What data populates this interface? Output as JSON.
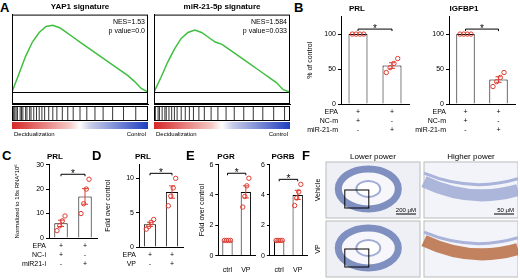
{
  "chart_data": [
    {
      "type": "line",
      "panel": "A",
      "title": "YAP1 signature",
      "color": "#3fbf3f",
      "annotations": [
        "NES=1.53",
        "p value=0.0"
      ],
      "x": [
        0,
        5,
        10,
        15,
        20,
        25,
        30,
        35,
        40,
        45,
        50,
        55,
        60,
        65,
        70,
        75,
        80,
        85,
        90,
        95,
        100
      ],
      "values": [
        0,
        0.15,
        0.3,
        0.42,
        0.5,
        0.55,
        0.56,
        0.54,
        0.5,
        0.46,
        0.42,
        0.38,
        0.34,
        0.3,
        0.26,
        0.22,
        0.18,
        0.14,
        0.09,
        0.03,
        0
      ],
      "hits": [
        1,
        2,
        3,
        4,
        6,
        7,
        8,
        10,
        11,
        13,
        14,
        16,
        18,
        20,
        22,
        24,
        27,
        30,
        33,
        37,
        41,
        45,
        50,
        55,
        61,
        67,
        74,
        82,
        91
      ],
      "gradient_labels": [
        "Decidualization",
        "Control"
      ],
      "xlim": [
        0,
        100
      ],
      "ylim": [
        -0.1,
        0.65
      ],
      "yticks": [
        0
      ],
      "grid": true,
      "tick_labels": false
    },
    {
      "type": "line",
      "title": "miR-21-5p signature",
      "color": "#3fbf3f",
      "annotations": [
        "NES=1.584",
        "p value=0.033"
      ],
      "x": [
        0,
        5,
        10,
        15,
        20,
        25,
        30,
        35,
        40,
        45,
        50,
        55,
        60,
        65,
        70,
        75,
        80,
        85,
        90,
        95,
        100
      ],
      "values": [
        0,
        0.12,
        0.25,
        0.36,
        0.45,
        0.5,
        0.52,
        0.5,
        0.46,
        0.42,
        0.4,
        0.36,
        0.32,
        0.28,
        0.24,
        0.2,
        0.16,
        0.12,
        0.08,
        0.02,
        0
      ],
      "hits": [
        1,
        3,
        4,
        6,
        8,
        9,
        11,
        13,
        15,
        17,
        20,
        23,
        26,
        29,
        33,
        37,
        42,
        47,
        53,
        59,
        66,
        73,
        80,
        88,
        96
      ],
      "gradient_labels": [
        "Decidualization",
        "Control"
      ],
      "xlim": [
        0,
        100
      ],
      "ylim": [
        -0.1,
        0.65
      ],
      "yticks": [
        0
      ],
      "grid": true,
      "tick_labels": false
    },
    {
      "type": "bar",
      "panel": "B",
      "title": "PRL",
      "y_label": "% of control",
      "color": "#e03c31",
      "conditions": [
        {
          "name": "EPA",
          "signs": [
            "+",
            "+"
          ]
        },
        {
          "name": "NC-m",
          "signs": [
            "+",
            "-"
          ]
        },
        {
          "name": "miR-21-m",
          "signs": [
            "-",
            "+"
          ]
        }
      ],
      "values": [
        100,
        55
      ],
      "errors": [
        0,
        4
      ],
      "points": [
        [
          100,
          100,
          100,
          100
        ],
        [
          45,
          52,
          58,
          65
        ]
      ],
      "significance": {
        "pair": [
          0,
          1
        ],
        "label": "*"
      },
      "ylim": [
        0,
        125
      ],
      "yticks": [
        0,
        50,
        100
      ],
      "grid": false
    },
    {
      "type": "bar",
      "title": "IGFBP1",
      "color": "#e03c31",
      "conditions": [
        {
          "name": "EPA",
          "signs": [
            "+",
            "+"
          ]
        },
        {
          "name": "NC-m",
          "signs": [
            "+",
            "-"
          ]
        },
        {
          "name": "miR-21-m",
          "signs": [
            "-",
            "+"
          ]
        }
      ],
      "values": [
        100,
        35
      ],
      "errors": [
        0,
        4
      ],
      "points": [
        [
          100,
          100,
          100,
          100
        ],
        [
          25,
          32,
          38,
          45
        ]
      ],
      "significance": {
        "pair": [
          0,
          1
        ],
        "label": "*"
      },
      "ylim": [
        0,
        125
      ],
      "yticks": [
        0,
        50,
        100
      ],
      "grid": false
    },
    {
      "type": "bar",
      "panel": "C",
      "title": "PRL",
      "y_label": "Normalized to 18s RNA*10⁶",
      "color": "#e03c31",
      "conditions": [
        {
          "name": "EPA",
          "signs": [
            "+",
            "+"
          ]
        },
        {
          "name": "NC-i",
          "signs": [
            "+",
            "-"
          ]
        },
        {
          "name": "miR21-i",
          "signs": [
            "-",
            "+"
          ]
        }
      ],
      "values": [
        6,
        17
      ],
      "errors": [
        1.3,
        3.2
      ],
      "points": [
        [
          3,
          5,
          7,
          9
        ],
        [
          10,
          14,
          20,
          24
        ]
      ],
      "significance": {
        "pair": [
          0,
          1
        ],
        "label": "*"
      },
      "ylim": [
        0,
        30
      ],
      "yticks": [
        0,
        10,
        20,
        30
      ],
      "grid": false
    },
    {
      "type": "bar",
      "panel": "D",
      "title": "PRL",
      "y_label": "Fold over control",
      "color": "#e03c31",
      "conditions": [
        {
          "name": "EPA",
          "signs": [
            "+",
            "+"
          ]
        },
        {
          "name": "VP",
          "signs": [
            "-",
            "+"
          ]
        }
      ],
      "values": [
        3.3,
        8
      ],
      "errors": [
        0.3,
        0.9
      ],
      "points": [
        [
          2.6,
          3,
          3.6,
          4
        ],
        [
          6,
          7.4,
          8.6,
          10
        ]
      ],
      "significance": {
        "pair": [
          0,
          1
        ],
        "label": "*"
      },
      "ylim": [
        0,
        12
      ],
      "yticks": [
        0,
        5,
        10
      ],
      "grid": false
    },
    {
      "type": "bar",
      "panel": "E",
      "title": "PGR",
      "y_label": "Fold over control",
      "color": "#e03c31",
      "categories": [
        "ctrl",
        "VP"
      ],
      "values": [
        1,
        4.2
      ],
      "errors": [
        0,
        0.4
      ],
      "points": [
        [
          1,
          1,
          1,
          1
        ],
        [
          3.2,
          3.9,
          4.6,
          5.1
        ]
      ],
      "significance": {
        "pair": [
          0,
          1
        ],
        "label": "*"
      },
      "ylim": [
        0,
        6
      ],
      "yticks": [
        0,
        2,
        4,
        6
      ],
      "grid": false
    },
    {
      "type": "bar",
      "title": "PGRB",
      "color": "#e03c31",
      "categories": [
        "ctrl",
        "VP"
      ],
      "values": [
        1,
        4.0
      ],
      "errors": [
        0,
        0.3
      ],
      "points": [
        [
          1,
          1,
          1,
          1
        ],
        [
          3.3,
          3.8,
          4.2,
          4.7
        ]
      ],
      "significance": {
        "pair": [
          0,
          1
        ],
        "label": "*"
      },
      "ylim": [
        0,
        6
      ],
      "yticks": [
        0,
        2,
        4,
        6
      ],
      "grid": false
    }
  ],
  "images": {
    "panel": "F",
    "columns": [
      "Lower power",
      "Higher power"
    ],
    "rows": [
      "Vehicle",
      "VP"
    ],
    "scale_bars": [
      "200 μM",
      "50 μM"
    ]
  }
}
